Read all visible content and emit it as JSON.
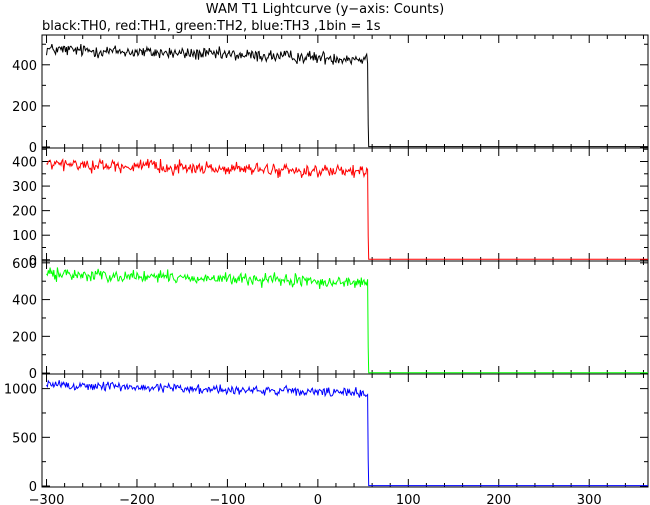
{
  "header": {
    "title": "WAM T1 Lightcurve (y−axis: Counts)",
    "subtitle": "black:TH0, red:TH1, green:TH2, blue:TH3 ,1bin = 1s"
  },
  "chart_data": [
    {
      "type": "line",
      "series": [
        {
          "color": "#000000",
          "profile": {
            "start": -300,
            "end": 55,
            "level_start": 475,
            "level_end": 428,
            "noise": 22,
            "drop_step_value": 110,
            "tail_value": 2
          }
        }
      ],
      "xlim": [
        -305,
        365
      ],
      "ylim": [
        -5,
        545
      ],
      "yticks": [
        0,
        200,
        400
      ],
      "ytick_labels": [
        "0",
        "200",
        "400"
      ],
      "x_ticks_visible": false
    },
    {
      "type": "line",
      "series": [
        {
          "color": "#ff0000",
          "profile": {
            "start": -300,
            "end": 55,
            "level_start": 390,
            "level_end": 355,
            "noise": 18,
            "drop_step_value": 95,
            "tail_value": 2
          }
        }
      ],
      "xlim": [
        -305,
        365
      ],
      "ylim": [
        -5,
        455
      ],
      "yticks": [
        0,
        100,
        200,
        300,
        400
      ],
      "ytick_labels": [
        "0",
        "100",
        "200",
        "300",
        "400"
      ],
      "x_ticks_visible": false
    },
    {
      "type": "line",
      "series": [
        {
          "color": "#00ff00",
          "profile": {
            "start": -300,
            "end": 55,
            "level_start": 540,
            "level_end": 490,
            "noise": 24,
            "drop_step_value": 140,
            "tail_value": 2
          }
        }
      ],
      "xlim": [
        -305,
        365
      ],
      "ylim": [
        -5,
        610
      ],
      "yticks": [
        0,
        200,
        400,
        600
      ],
      "ytick_labels": [
        "0",
        "200",
        "400",
        "600"
      ],
      "x_ticks_visible": false
    },
    {
      "type": "line",
      "series": [
        {
          "color": "#0000ff",
          "profile": {
            "start": -300,
            "end": 55,
            "level_start": 1040,
            "level_end": 950,
            "noise": 35,
            "drop_step_value": 270,
            "tail_value": 4
          }
        }
      ],
      "xlim": [
        -305,
        365
      ],
      "ylim": [
        -10,
        1150
      ],
      "yticks": [
        0,
        500,
        1000
      ],
      "ytick_labels": [
        "0",
        "500",
        "1000"
      ],
      "xticks": [
        -300,
        -200,
        -100,
        0,
        100,
        200,
        300
      ],
      "xtick_labels": [
        "−300",
        "−200",
        "−100",
        "0",
        "100",
        "200",
        "300"
      ],
      "x_ticks_visible": true
    }
  ]
}
